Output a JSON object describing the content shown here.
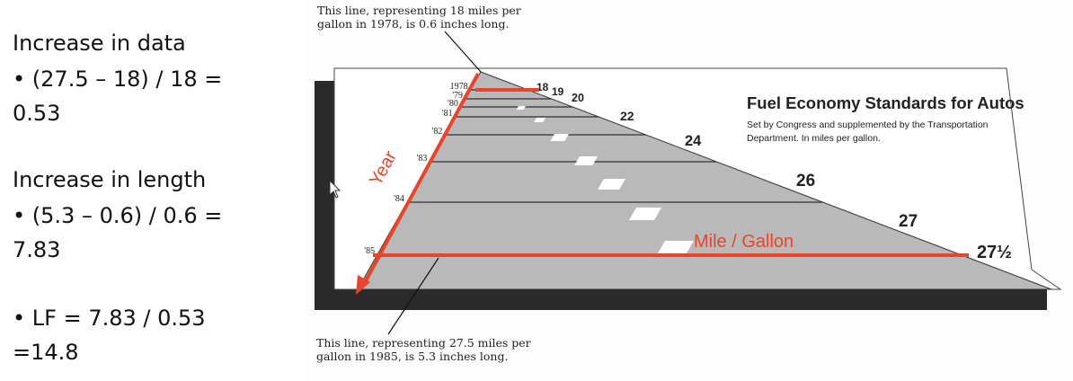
{
  "left_text": {
    "data_heading": "Increase in data",
    "data_line1": "• (27.5 – 18) / 18 =",
    "data_line2": "0.53",
    "length_heading": "Increase in length",
    "length_line1": "• (5.3 – 0.6) / 0.6 =",
    "length_line2": "7.83",
    "lf_line1": "• LF = 7.83 / 0.53",
    "lf_line2": "=14.8"
  },
  "annotations": {
    "top_note_line1": "This line, representing 18 miles per",
    "top_note_line2": "gallon in 1978, is 0.6 inches long.",
    "bottom_note_line1": "This line, representing 27.5 miles per",
    "bottom_note_line2": "gallon in 1985, is 5.3 inches long.",
    "year_label": "Year",
    "mpg_label": "Mile / Gallon"
  },
  "colors": {
    "highlight": "#e8452a",
    "road": "#b9b9b9",
    "shadow": "#2a2a2a"
  },
  "chart_data": {
    "type": "bar",
    "title": "Fuel Economy Standards for Autos",
    "subtitle_line1": "Set by Congress and supplemented by the Transportation",
    "subtitle_line2": "Department. In miles per gallon.",
    "categories": [
      "1978",
      "'79",
      "'80",
      "'81",
      "'82",
      "'83",
      "'84",
      "'85"
    ],
    "values": [
      18,
      19,
      20,
      22,
      24,
      26,
      27,
      27.5
    ],
    "value_labels": [
      "18",
      "19",
      "20",
      "22",
      "24",
      "26",
      "27",
      "27½"
    ],
    "xlabel": "Mile / Gallon",
    "ylabel": "Year"
  }
}
